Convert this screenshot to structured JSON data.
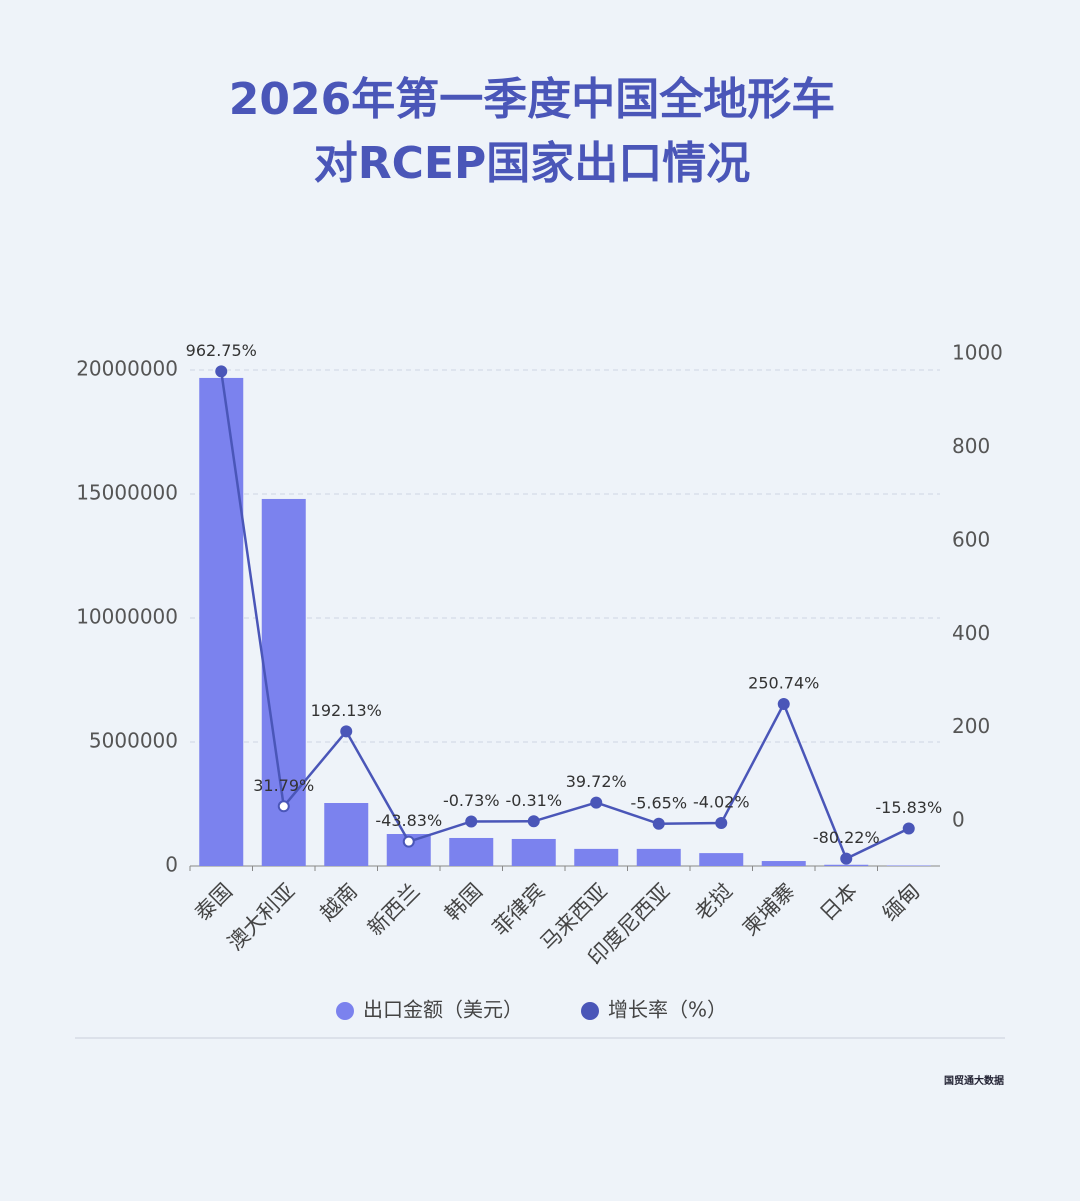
{
  "chart_data": {
    "type": "bar-line",
    "title": [
      "2026年第一季度中国全地形车",
      "对RCEP国家出口情况"
    ],
    "categories": [
      "泰国",
      "澳大利亚",
      "越南",
      "新西兰",
      "韩国",
      "菲律宾",
      "马来西亚",
      "印度尼西亚",
      "老挝",
      "柬埔寨",
      "日本",
      "缅甸"
    ],
    "series": [
      {
        "name": "出口金额（美元）",
        "type": "bar",
        "color": "#7b82ee",
        "values": [
          19680000,
          14800000,
          2540000,
          1290000,
          1130000,
          1090000,
          690000,
          690000,
          520000,
          200000,
          50000,
          20000
        ]
      },
      {
        "name": "增长率（%）",
        "type": "line",
        "axis": "y2",
        "color": "#4a56b8",
        "values": [
          962.75,
          31.79,
          192.13,
          -43.83,
          -0.73,
          -0.31,
          39.72,
          -5.65,
          -4.02,
          250.74,
          -80.22,
          -15.83
        ],
        "value_labels": [
          "962.75%",
          "31.79%",
          "192.13%",
          "-43.83%",
          "-0.73%",
          "-0.31%",
          "39.72%",
          "-5.65%",
          "-4.02%",
          "250.74%",
          "-80.22%",
          "-15.83%"
        ]
      }
    ],
    "ylim": [
      0,
      20000000
    ],
    "yticks": [
      0,
      5000000,
      10000000,
      15000000,
      20000000
    ],
    "y2lim": [
      -96,
      1000
    ],
    "y2ticks": [
      0,
      200,
      400,
      600,
      800,
      1000
    ],
    "grid": true,
    "brand": "国贸通大数据"
  }
}
